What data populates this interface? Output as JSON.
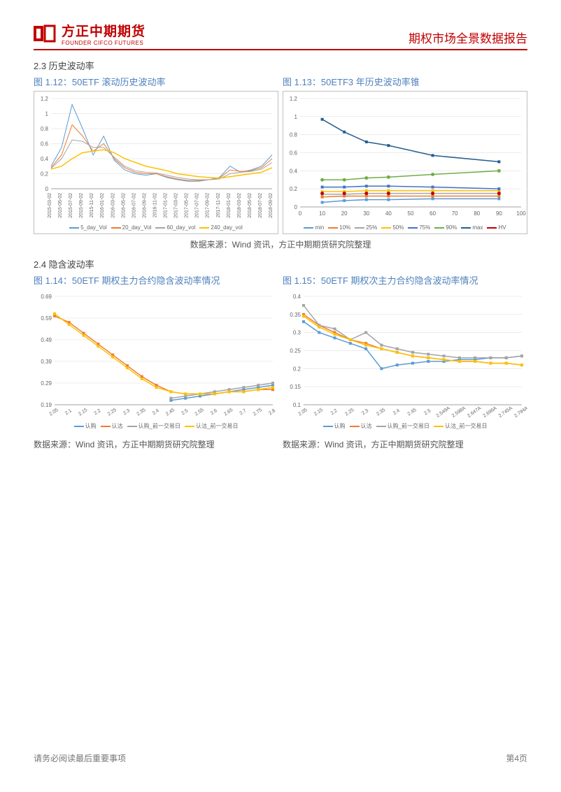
{
  "header": {
    "logo_cn": "方正中期期货",
    "logo_en": "FOUNDER CIFCO FUTURES",
    "report_title": "期权市场全景数据报告"
  },
  "section_23": {
    "label": "2.3 历史波动率",
    "chart112": {
      "title": "图 1.12：50ETF 滚动历史波动率",
      "type": "line",
      "background_color": "#ffffff",
      "grid_color": "#d9d9d9",
      "ylim": [
        0,
        1.2
      ],
      "ytick_step": 0.2,
      "x_labels": [
        "2015-03-02",
        "2015-05-02",
        "2015-07-02",
        "2015-09-02",
        "2015-11-02",
        "2016-01-02",
        "2016-03-02",
        "2016-05-02",
        "2016-07-02",
        "2016-09-02",
        "2016-11-02",
        "2017-01-02",
        "2017-03-02",
        "2017-05-02",
        "2017-07-02",
        "2017-09-02",
        "2017-11-02",
        "2018-01-02",
        "2018-03-02",
        "2018-05-02",
        "2018-07-02",
        "2018-09-02"
      ],
      "x_label_fontsize": 7,
      "series": [
        {
          "name": "5_day_Vol",
          "color": "#5b9bd5",
          "width": 1,
          "y": [
            0.3,
            0.55,
            1.12,
            0.8,
            0.45,
            0.7,
            0.38,
            0.25,
            0.2,
            0.18,
            0.2,
            0.15,
            0.12,
            0.1,
            0.1,
            0.12,
            0.15,
            0.3,
            0.22,
            0.25,
            0.3,
            0.45
          ]
        },
        {
          "name": "20_day_Vol",
          "color": "#ed7d31",
          "width": 1,
          "y": [
            0.28,
            0.45,
            0.85,
            0.7,
            0.5,
            0.6,
            0.4,
            0.28,
            0.22,
            0.2,
            0.2,
            0.16,
            0.13,
            0.11,
            0.11,
            0.12,
            0.14,
            0.25,
            0.23,
            0.24,
            0.28,
            0.4
          ]
        },
        {
          "name": "60_day_vol",
          "color": "#a5a5a5",
          "width": 1,
          "y": [
            0.27,
            0.4,
            0.65,
            0.63,
            0.55,
            0.55,
            0.42,
            0.3,
            0.24,
            0.22,
            0.21,
            0.18,
            0.15,
            0.13,
            0.12,
            0.12,
            0.13,
            0.2,
            0.22,
            0.23,
            0.26,
            0.35
          ]
        },
        {
          "name": "240_day_vol",
          "color": "#ffc000",
          "width": 1.5,
          "y": [
            0.26,
            0.3,
            0.4,
            0.48,
            0.5,
            0.52,
            0.48,
            0.4,
            0.35,
            0.3,
            0.27,
            0.24,
            0.2,
            0.18,
            0.16,
            0.15,
            0.14,
            0.16,
            0.18,
            0.2,
            0.22,
            0.28
          ]
        }
      ],
      "legend_fontsize": 8
    },
    "chart113": {
      "title": "图 1.13：50ETF3 年历史波动率锥",
      "type": "line",
      "background_color": "#ffffff",
      "grid_color": "#d9d9d9",
      "ylim": [
        0,
        1.2
      ],
      "ytick_step": 0.2,
      "xlim": [
        0,
        100
      ],
      "xtick_step": 10,
      "x_points": [
        10,
        20,
        30,
        40,
        60,
        90
      ],
      "series": [
        {
          "name": "min",
          "color": "#5b9bd5",
          "marker": "diamond",
          "y": [
            0.05,
            0.07,
            0.08,
            0.08,
            0.09,
            0.09
          ]
        },
        {
          "name": "10%",
          "color": "#ed7d31",
          "marker": "square",
          "y": [
            0.11,
            0.12,
            0.12,
            0.12,
            0.12,
            0.12
          ]
        },
        {
          "name": "25%",
          "color": "#a5a5a5",
          "marker": "triangle",
          "y": [
            0.14,
            0.14,
            0.15,
            0.15,
            0.15,
            0.15
          ]
        },
        {
          "name": "50%",
          "color": "#ffc000",
          "marker": "x",
          "y": [
            0.17,
            0.17,
            0.18,
            0.18,
            0.18,
            0.18
          ]
        },
        {
          "name": "75%",
          "color": "#4472c4",
          "marker": "star",
          "y": [
            0.22,
            0.22,
            0.23,
            0.23,
            0.22,
            0.2
          ]
        },
        {
          "name": "90%",
          "color": "#70ad47",
          "marker": "circle",
          "y": [
            0.3,
            0.3,
            0.32,
            0.33,
            0.36,
            0.4
          ]
        },
        {
          "name": "max",
          "color": "#255e91",
          "marker": "plus",
          "y": [
            0.97,
            0.83,
            0.72,
            0.68,
            0.57,
            0.5
          ]
        },
        {
          "name": "HV",
          "color": "#c00000",
          "marker": "dot",
          "line": false,
          "y": [
            0.15,
            0.15,
            0.15,
            0.15,
            0.15,
            0.15
          ]
        }
      ],
      "legend_fontsize": 8
    },
    "source": "数据来源：Wind 资讯，方正中期期货研究院整理"
  },
  "section_24": {
    "label": "2.4 隐含波动率",
    "chart114": {
      "title": "图 1.14：50ETF 期权主力合约隐含波动率情况",
      "type": "line",
      "background_color": "#ffffff",
      "grid_color": "#d9d9d9",
      "ylim": [
        0.19,
        0.69
      ],
      "ytick_step": 0.1,
      "x_labels": [
        "2.05",
        "2.1",
        "2.15",
        "2.2",
        "2.25",
        "2.3",
        "2.35",
        "2.4",
        "2.45",
        "2.5",
        "2.55",
        "2.6",
        "2.65",
        "2.7",
        "2.75",
        "2.8"
      ],
      "series": [
        {
          "name": "认购",
          "color": "#5b9bd5",
          "marker": "diamond",
          "y": [
            null,
            null,
            null,
            null,
            null,
            null,
            null,
            null,
            0.21,
            0.22,
            0.23,
            0.24,
            0.25,
            0.26,
            0.27,
            0.28
          ]
        },
        {
          "name": "认沽",
          "color": "#ed7d31",
          "marker": "square",
          "y": [
            0.6,
            0.57,
            0.52,
            0.47,
            0.42,
            0.37,
            0.32,
            0.28,
            0.25,
            0.24,
            0.24,
            0.24,
            0.25,
            0.25,
            0.26,
            0.26
          ]
        },
        {
          "name": "认购_前一交易日",
          "color": "#a5a5a5",
          "marker": "triangle",
          "y": [
            null,
            null,
            null,
            null,
            null,
            null,
            null,
            null,
            0.22,
            0.23,
            0.24,
            0.25,
            0.26,
            0.27,
            0.28,
            0.29
          ]
        },
        {
          "name": "认沽_前一交易日",
          "color": "#ffc000",
          "marker": "x",
          "y": [
            0.61,
            0.56,
            0.51,
            0.46,
            0.41,
            0.36,
            0.31,
            0.27,
            0.25,
            0.24,
            0.24,
            0.24,
            0.25,
            0.25,
            0.26,
            0.27
          ]
        }
      ],
      "legend_fontsize": 8
    },
    "chart115": {
      "title": "图 1.15：50ETF 期权次主力合约隐含波动率情况",
      "type": "line",
      "background_color": "#ffffff",
      "grid_color": "#d9d9d9",
      "ylim": [
        0.1,
        0.4
      ],
      "ytick_step": 0.05,
      "x_labels": [
        "2.05",
        "2.15",
        "2.2",
        "2.25",
        "2.3",
        "2.35",
        "2.4",
        "2.45",
        "2.5",
        "2.549A",
        "2.598A",
        "2.647A",
        "2.696A",
        "2.745A",
        "2.794A"
      ],
      "series": [
        {
          "name": "认购",
          "color": "#5b9bd5",
          "marker": "diamond",
          "y": [
            0.33,
            0.3,
            0.285,
            0.27,
            0.255,
            0.2,
            0.21,
            0.215,
            0.22,
            0.22,
            0.225,
            0.225,
            0.23,
            0.23,
            0.235
          ]
        },
        {
          "name": "认沽",
          "color": "#ed7d31",
          "marker": "square",
          "y": [
            0.35,
            0.32,
            0.3,
            0.28,
            0.27,
            0.255,
            0.245,
            0.235,
            0.23,
            0.225,
            0.22,
            0.22,
            0.215,
            0.215,
            0.21
          ]
        },
        {
          "name": "认购_前一交易日",
          "color": "#a5a5a5",
          "marker": "triangle",
          "y": [
            0.375,
            0.32,
            0.31,
            0.28,
            0.3,
            0.265,
            0.255,
            0.245,
            0.24,
            0.235,
            0.23,
            0.23,
            0.23,
            0.23,
            0.235
          ]
        },
        {
          "name": "认沽_前一交易日",
          "color": "#ffc000",
          "marker": "x",
          "y": [
            0.345,
            0.315,
            0.295,
            0.28,
            0.265,
            0.255,
            0.245,
            0.235,
            0.23,
            0.225,
            0.22,
            0.22,
            0.215,
            0.215,
            0.21
          ]
        }
      ],
      "legend_fontsize": 8
    },
    "source_left": "数据来源：Wind 资讯，方正中期期货研究院整理",
    "source_right": "数据来源：Wind 资讯，方正中期期货研究院整理"
  },
  "footer": {
    "disclaimer": "请务必阅读最后重要事项",
    "page": "第4页"
  }
}
